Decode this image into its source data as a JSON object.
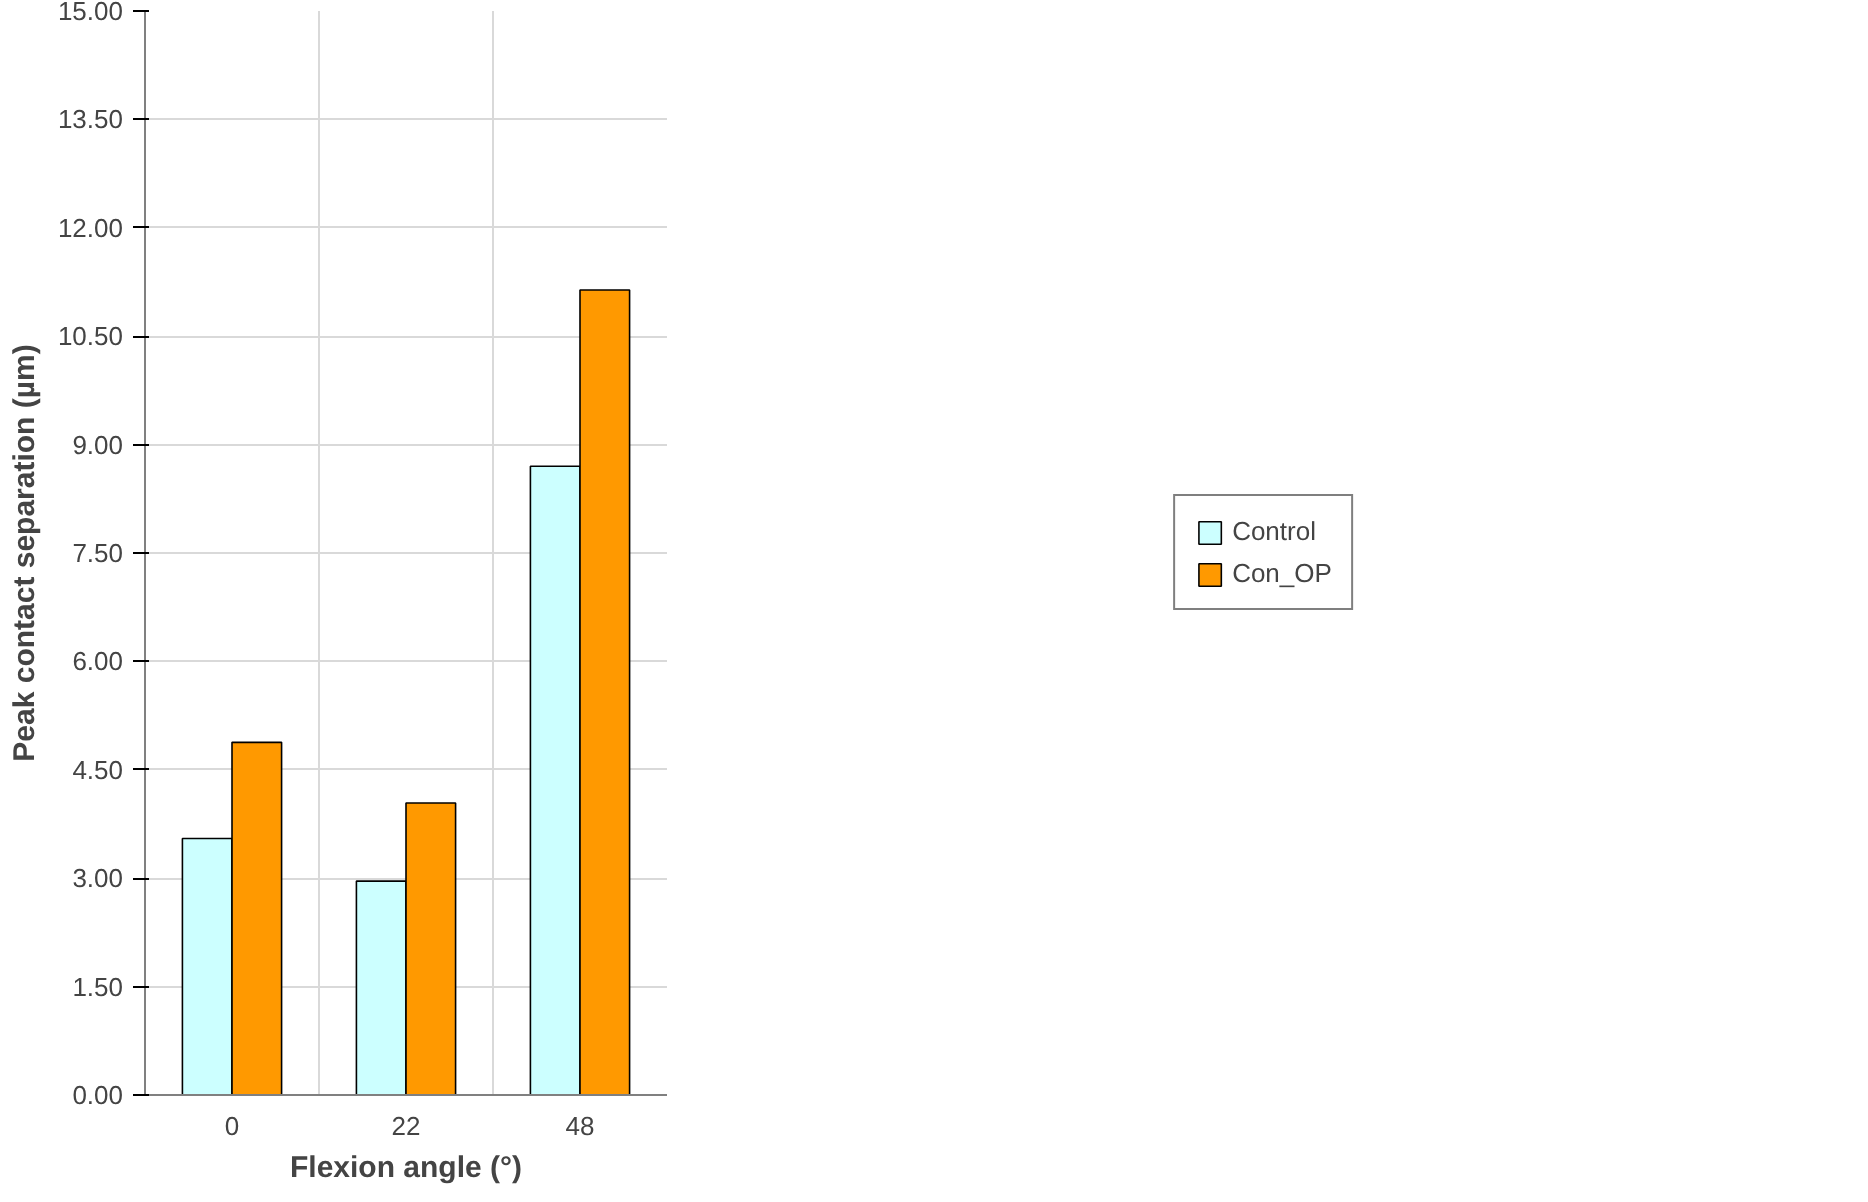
{
  "chart_data": {
    "type": "bar",
    "xlabel": "Flexion angle (°)",
    "ylabel": "Peak contact separation (µm)",
    "categories": [
      "0",
      "22",
      "48"
    ],
    "series": [
      {
        "name": "Control",
        "color": "#ccffff",
        "values": [
          3.55,
          2.96,
          8.7
        ]
      },
      {
        "name": "Con_OP",
        "color": "#ff9900",
        "values": [
          4.88,
          4.04,
          11.14
        ]
      }
    ],
    "ylim": [
      0,
      15
    ],
    "yticks": [
      {
        "value": 0,
        "label": "0.00"
      },
      {
        "value": 1.5,
        "label": "1.50"
      },
      {
        "value": 3,
        "label": "3.00"
      },
      {
        "value": 4.5,
        "label": "4.50"
      },
      {
        "value": 6,
        "label": "6.00"
      },
      {
        "value": 7.5,
        "label": "7.50"
      },
      {
        "value": 9,
        "label": "9.00"
      },
      {
        "value": 10.5,
        "label": "10.50"
      },
      {
        "value": 12,
        "label": "12.00"
      },
      {
        "value": 13.5,
        "label": "13.50"
      },
      {
        "value": 15,
        "label": "15.00"
      }
    ],
    "grid": true,
    "legend": "right"
  }
}
